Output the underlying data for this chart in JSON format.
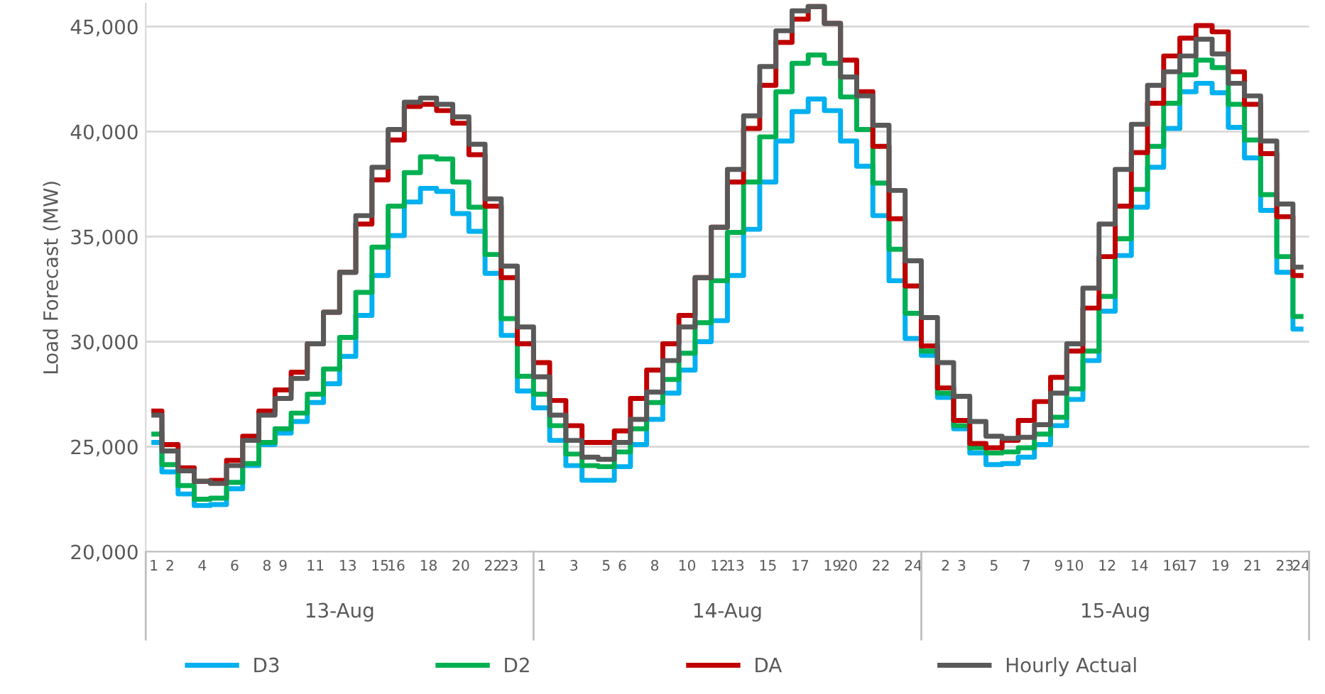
{
  "chart_data": {
    "type": "step",
    "ylabel": "Load Forecast (MW)",
    "categories": [
      "1",
      "2",
      null,
      "4",
      null,
      "6",
      null,
      "8",
      "9",
      null,
      "11",
      null,
      "13",
      null,
      "15",
      "16",
      null,
      "18",
      null,
      "20",
      null,
      "22",
      "23",
      null,
      "1",
      null,
      "3",
      null,
      "5",
      "6",
      null,
      "8",
      null,
      "10",
      null,
      "12",
      "13",
      null,
      "15",
      null,
      "17",
      null,
      "19",
      "20",
      null,
      "22",
      null,
      "24",
      null,
      "2",
      "3",
      null,
      "5",
      null,
      "7",
      null,
      "9",
      "10",
      null,
      "12",
      null,
      "14",
      null,
      "16",
      "17",
      null,
      "19",
      null,
      "21",
      null,
      "23",
      "24"
    ],
    "annotations": [
      "13-Aug",
      "14-Aug",
      "15-Aug"
    ],
    "ylim": [
      20000,
      46100
    ],
    "yticks": [
      {
        "value": 20000,
        "label": "20,000"
      },
      {
        "value": 25000,
        "label": "25,000"
      },
      {
        "value": 30000,
        "label": "30,000"
      },
      {
        "value": 35000,
        "label": "35,000"
      },
      {
        "value": 40000,
        "label": "40,000"
      },
      {
        "value": 45000,
        "label": "45,000"
      }
    ],
    "grid": "y",
    "legend": "bottom",
    "series": [
      {
        "name": "D3",
        "color": "#00b0f0",
        "values": [
          25200,
          23800,
          22750,
          22200,
          22250,
          23000,
          24100,
          25100,
          25650,
          26200,
          27100,
          28000,
          29300,
          31250,
          33150,
          35050,
          36650,
          37300,
          37150,
          36100,
          35250,
          33250,
          30300,
          27650,
          26850,
          25300,
          24100,
          23400,
          23400,
          24050,
          25100,
          26300,
          27550,
          28650,
          30000,
          31000,
          33150,
          35350,
          37600,
          39550,
          40950,
          41550,
          41000,
          39550,
          38350,
          36000,
          32900,
          30150,
          29350,
          27350,
          25850,
          24700,
          24150,
          24200,
          24500,
          25100,
          26000,
          27250,
          29100,
          31450,
          34100,
          36400,
          38300,
          40150,
          41900,
          42300,
          41850,
          40200,
          38750,
          36250,
          33300,
          30600
        ]
      },
      {
        "name": "D2",
        "color": "#00b050",
        "values": [
          25600,
          24150,
          23150,
          22500,
          22550,
          23300,
          24200,
          25200,
          25850,
          26600,
          27500,
          28700,
          30200,
          32350,
          34500,
          36450,
          38050,
          38800,
          38700,
          37600,
          36400,
          34150,
          31100,
          28350,
          27500,
          26000,
          24650,
          24100,
          24050,
          24750,
          25850,
          27100,
          28200,
          29450,
          30900,
          32900,
          35200,
          37600,
          39750,
          41900,
          43250,
          43650,
          43250,
          41650,
          40100,
          37550,
          34400,
          31350,
          29550,
          27550,
          26000,
          24950,
          24700,
          24750,
          24950,
          25600,
          26400,
          27750,
          29550,
          32150,
          34900,
          37250,
          39300,
          41350,
          42700,
          43400,
          43050,
          41300,
          39600,
          37000,
          34050,
          31200
        ]
      },
      {
        "name": "DA",
        "color": "#c00000",
        "values": [
          26700,
          25100,
          24000,
          23350,
          23400,
          24350,
          25500,
          26700,
          27700,
          28550,
          29900,
          31400,
          33300,
          35600,
          37700,
          39600,
          41200,
          41300,
          41000,
          40400,
          38900,
          36450,
          33050,
          29900,
          29000,
          27200,
          26000,
          25200,
          25200,
          25750,
          27300,
          28650,
          29900,
          31250,
          33050,
          35450,
          37600,
          40150,
          42200,
          44250,
          45350,
          45950,
          45150,
          43400,
          41900,
          39300,
          35850,
          32650,
          29800,
          27800,
          26250,
          25150,
          24950,
          25300,
          26250,
          27150,
          28300,
          29550,
          31600,
          34050,
          36450,
          39000,
          41350,
          43600,
          44450,
          45050,
          44750,
          42850,
          41300,
          38950,
          35950,
          33150
        ]
      },
      {
        "name": "Hourly Actual",
        "color": "#595959",
        "values": [
          26500,
          24800,
          23850,
          23350,
          23250,
          24100,
          25300,
          26500,
          27300,
          28250,
          29900,
          31400,
          33300,
          36000,
          38300,
          40100,
          41400,
          41600,
          41300,
          40700,
          39400,
          36800,
          33600,
          30700,
          28330,
          26500,
          25300,
          24500,
          24400,
          25200,
          26300,
          27600,
          29100,
          30700,
          33050,
          35450,
          38200,
          40750,
          43100,
          44800,
          45750,
          45950,
          45150,
          42600,
          41700,
          40300,
          37200,
          33850,
          31150,
          29000,
          27400,
          26200,
          25500,
          25400,
          25450,
          26050,
          27550,
          29900,
          32550,
          35600,
          38200,
          40350,
          42200,
          42850,
          43600,
          44400,
          43700,
          42300,
          41700,
          39550,
          36550,
          33550
        ]
      }
    ]
  }
}
